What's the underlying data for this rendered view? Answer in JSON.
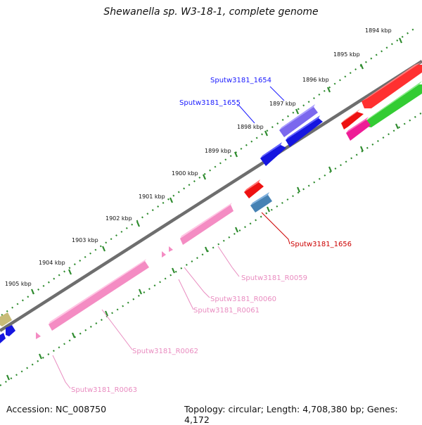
{
  "title": "Shewanella sp. W3-18-1, complete genome",
  "footer": {
    "accession": "Accession: NC_008750",
    "topology": "Topology: circular; Length: 4,708,380 bp; Genes: 4,172"
  },
  "ticks": [
    "1894 kbp",
    "1895 kbp",
    "1896 kbp",
    "1897 kbp",
    "1898 kbp",
    "1899 kbp",
    "1900 kbp",
    "1901 kbp",
    "1902 kbp",
    "1903 kbp",
    "1904 kbp",
    "1905 kbp"
  ],
  "gene_labels": {
    "sputw3181_1654": "Sputw3181_1654",
    "sputw3181_1655": "Sputw3181_1655",
    "sputw3181_1656": "Sputw3181_1656",
    "sputw3181_r0059": "Sputw3181_R0059",
    "sputw3181_r0060": "Sputw3181_R0060",
    "sputw3181_r0061": "Sputw3181_R0061",
    "sputw3181_r0062": "Sputw3181_R0062",
    "sputw3181_r0063": "Sputw3181_R0063"
  },
  "colors": {
    "backbone": "#6e6e6e",
    "tick_major": "#2e8b2e",
    "tick_minor": "#2e8b2e",
    "cds_blue": "#1515e0",
    "cds_red": "#ee1111",
    "cds_purple": "#7b68ee",
    "cds_steel": "#4682b4",
    "cds_green": "#33cc33",
    "cds_magenta": "#ee1c96",
    "trna_pink": "#f48cc3",
    "label_blue": "#1a1aff",
    "label_red": "#cc0000",
    "label_pink": "#e98cc0"
  }
}
